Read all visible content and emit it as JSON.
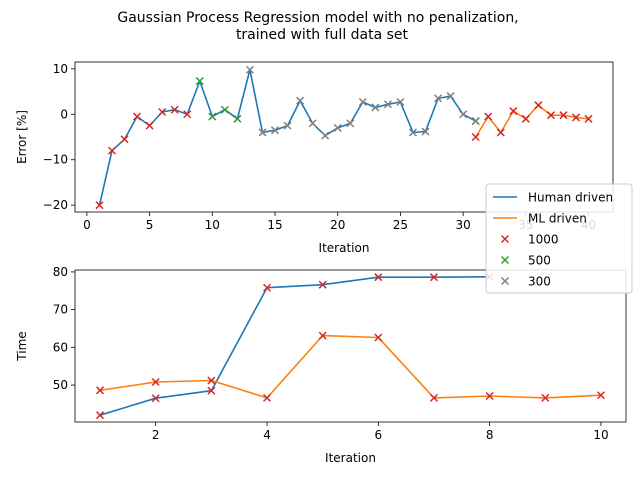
{
  "figure": {
    "title_line1": "Gaussian Process Regression model with no  penalization,",
    "title_line2": "trained with full data set"
  },
  "colors": {
    "human": "#1f77b4",
    "ml": "#ff7f0e",
    "m1000": "#d62728",
    "m500": "#2ca02c",
    "m300": "#7f7f7f"
  },
  "chart_data": [
    {
      "type": "line",
      "title": "",
      "xlabel": "Iteration",
      "ylabel": "Error [%]",
      "xlim": [
        -0.95,
        41.95
      ],
      "ylim": [
        -21.5,
        11.5
      ],
      "xticks": [
        0,
        5,
        10,
        15,
        20,
        25,
        30,
        35,
        40
      ],
      "yticks": [
        -20,
        -10,
        0,
        10
      ],
      "series": [
        {
          "name": "Human driven",
          "x": [
            1,
            2,
            3,
            4,
            5,
            6,
            7,
            8,
            9,
            10,
            11,
            12,
            13,
            14,
            15,
            16,
            17,
            18,
            19,
            20,
            21,
            22,
            23,
            24,
            25,
            26,
            27,
            28,
            29,
            30,
            31
          ],
          "y": [
            -20,
            -8,
            -5.5,
            -0.5,
            -2.5,
            0.5,
            1,
            0,
            7.3,
            -0.5,
            1,
            -1,
            9.8,
            -4,
            -3.5,
            -2.5,
            3,
            -2,
            -4.7,
            -3,
            -2,
            2.7,
            1.5,
            2.2,
            2.7,
            -4,
            -3.8,
            3.5,
            4,
            0,
            -1.5
          ]
        },
        {
          "name": "ML driven",
          "x": [
            31,
            32,
            33,
            34,
            35,
            36,
            37,
            38,
            39,
            40
          ],
          "y": [
            -5,
            -0.5,
            -4,
            0.7,
            -1,
            2,
            -0.2,
            -0.2,
            -0.7,
            -1
          ]
        }
      ],
      "markers": [
        {
          "name": "1000",
          "x": [
            1,
            2,
            3,
            4,
            5,
            6,
            7,
            8,
            31,
            32,
            33,
            34,
            35,
            36,
            37,
            38,
            39,
            40
          ],
          "y": [
            -20,
            -8,
            -5.5,
            -0.5,
            -2.5,
            0.5,
            1,
            0,
            -5,
            -0.5,
            -4,
            0.7,
            -1,
            2,
            -0.2,
            -0.2,
            -0.7,
            -1
          ]
        },
        {
          "name": "500",
          "x": [
            9,
            10,
            11,
            12,
            31
          ],
          "y": [
            7.3,
            -0.5,
            1,
            -1,
            -1.5
          ]
        },
        {
          "name": "300",
          "x": [
            13,
            14,
            15,
            16,
            17,
            18,
            19,
            20,
            21,
            22,
            23,
            24,
            25,
            26,
            27,
            28,
            29,
            30,
            31
          ],
          "y": [
            9.8,
            -4,
            -3.5,
            -2.5,
            3,
            -2,
            -4.7,
            -3,
            -2,
            2.7,
            1.5,
            2.2,
            2.7,
            -4,
            -3.8,
            3.5,
            4,
            0,
            -1.5
          ]
        }
      ],
      "legend": {
        "placement": "right",
        "entries": [
          "Human driven",
          "ML driven",
          "1000",
          "500",
          "300"
        ]
      }
    },
    {
      "type": "line",
      "title": "",
      "xlabel": "Iteration",
      "ylabel": "Time",
      "xlim": [
        0.55,
        10.45
      ],
      "ylim": [
        40.2,
        80.5
      ],
      "xticks": [
        2,
        4,
        6,
        8,
        10
      ],
      "yticks": [
        50,
        60,
        70,
        80
      ],
      "series": [
        {
          "name": "Human driven",
          "x": [
            1,
            2,
            3,
            4,
            5,
            6,
            7,
            8
          ],
          "y": [
            42,
            46.5,
            48.5,
            75.8,
            76.6,
            78.6,
            78.6,
            78.7
          ]
        },
        {
          "name": "ML driven",
          "x": [
            1,
            2,
            3,
            4,
            5,
            6,
            7,
            8,
            9,
            10
          ],
          "y": [
            48.6,
            50.8,
            51.2,
            46.6,
            63.1,
            62.6,
            46.6,
            47.1,
            46.6,
            47.3
          ]
        }
      ],
      "markers": [
        {
          "name": "1000",
          "x": [
            1,
            2,
            3,
            4,
            5,
            6,
            7,
            8,
            1,
            2,
            3,
            4,
            5,
            6,
            7,
            8,
            9,
            10
          ],
          "y": [
            42,
            46.5,
            48.5,
            75.8,
            76.6,
            78.6,
            78.6,
            78.7,
            48.6,
            50.8,
            51.2,
            46.6,
            63.1,
            62.6,
            46.6,
            47.1,
            46.6,
            47.3
          ]
        }
      ]
    }
  ]
}
